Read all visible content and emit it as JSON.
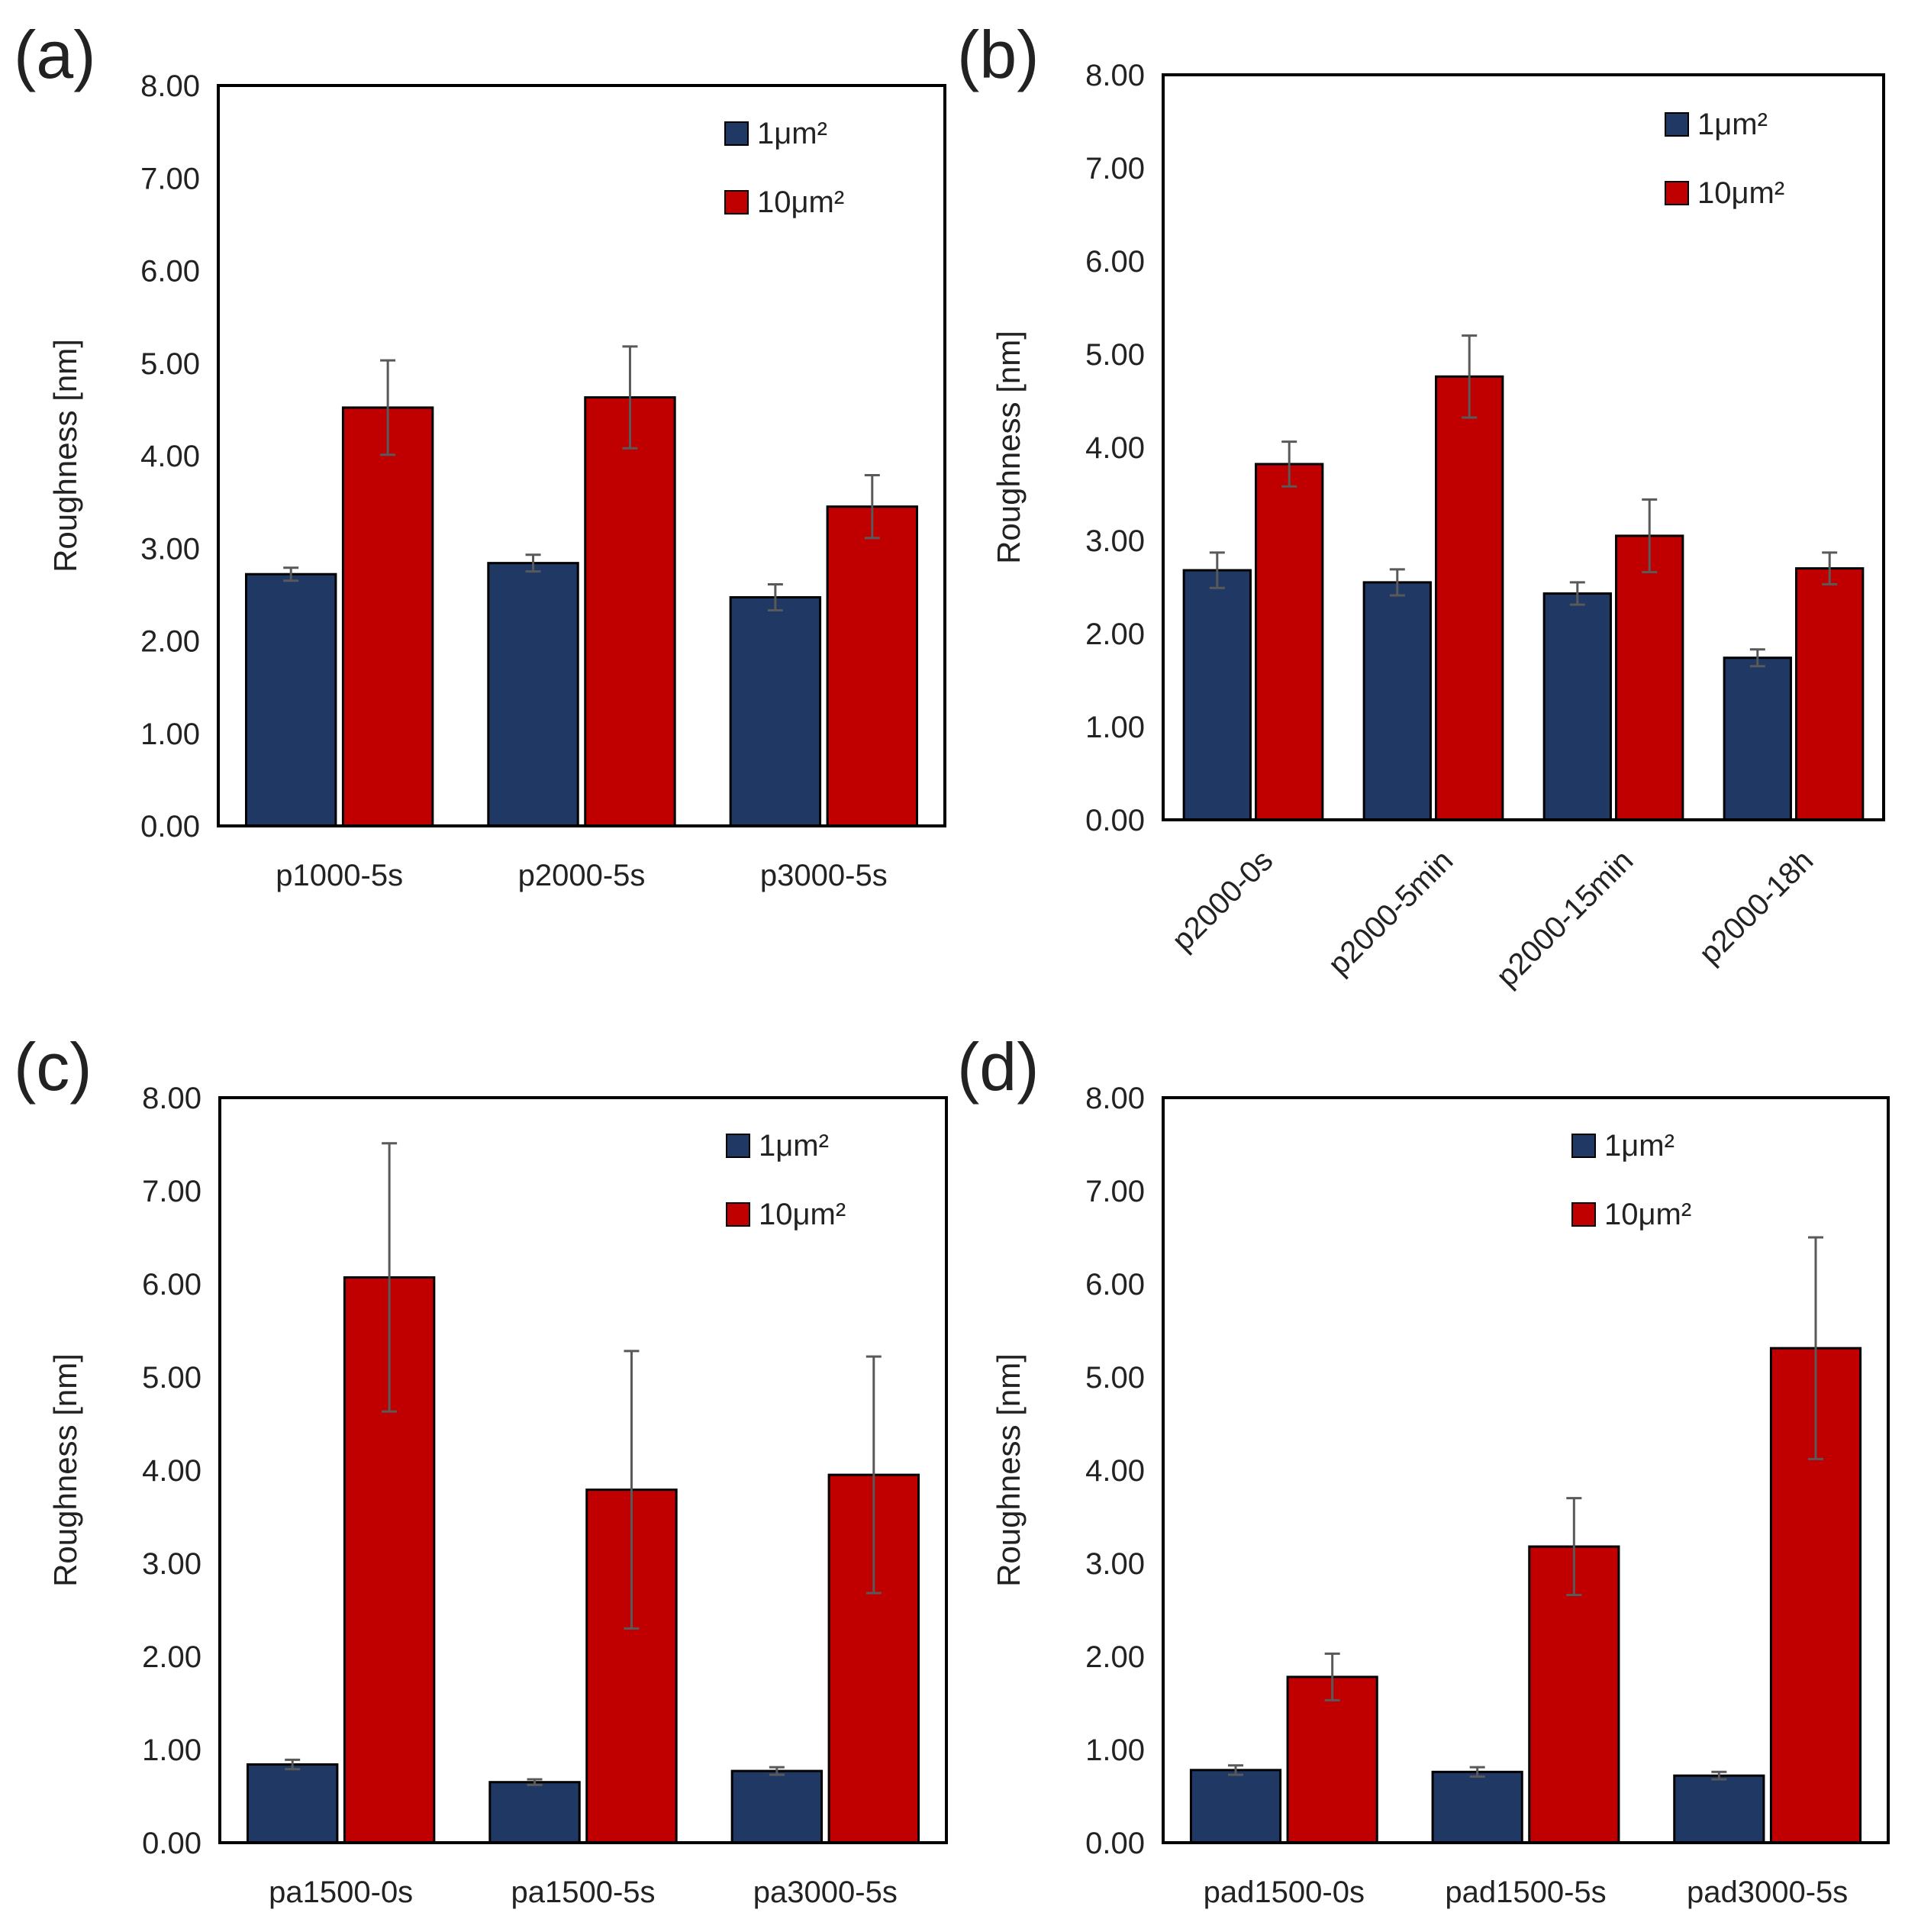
{
  "colors": {
    "series_1um": "#1f3864",
    "series_10um": "#c00000",
    "error_bar": "#595959",
    "frame": "#000000"
  },
  "chart_data": [
    {
      "panel": "(a)",
      "type": "bar",
      "ylabel": "Roughness [nm]",
      "ylim": [
        0,
        8
      ],
      "yticks": [
        "0.00",
        "1.00",
        "2.00",
        "3.00",
        "4.00",
        "5.00",
        "6.00",
        "7.00",
        "8.00"
      ],
      "categories": [
        "p1000-5s",
        "p2000-5s",
        "p3000-5s"
      ],
      "rotated_labels": false,
      "legend": "top-right",
      "series": [
        {
          "name": "1μm²",
          "values": [
            2.72,
            2.84,
            2.47
          ],
          "errors": [
            0.07,
            0.09,
            0.14
          ]
        },
        {
          "name": "10μm²",
          "values": [
            4.52,
            4.63,
            3.45
          ],
          "errors": [
            0.51,
            0.55,
            0.34
          ]
        }
      ]
    },
    {
      "panel": "(b)",
      "type": "bar",
      "ylabel": "Roughness [nm]",
      "ylim": [
        0,
        8
      ],
      "yticks": [
        "0.00",
        "1.00",
        "2.00",
        "3.00",
        "4.00",
        "5.00",
        "6.00",
        "7.00",
        "8.00"
      ],
      "categories": [
        "p2000-0s",
        "p2000-5min",
        "p2000-15min",
        "p2000-18h"
      ],
      "rotated_labels": true,
      "legend": "top-right",
      "series": [
        {
          "name": "1μm²",
          "values": [
            2.68,
            2.55,
            2.43,
            1.74
          ],
          "errors": [
            0.19,
            0.14,
            0.12,
            0.09
          ]
        },
        {
          "name": "10μm²",
          "values": [
            3.82,
            4.76,
            3.05,
            2.7
          ],
          "errors": [
            0.24,
            0.44,
            0.39,
            0.17
          ]
        }
      ]
    },
    {
      "panel": "(c)",
      "type": "bar",
      "ylabel": "Roughness [nm]",
      "ylim": [
        0,
        8
      ],
      "yticks": [
        "0.00",
        "1.00",
        "2.00",
        "3.00",
        "4.00",
        "5.00",
        "6.00",
        "7.00",
        "8.00"
      ],
      "categories": [
        "pa1500-0s",
        "pa1500-5s",
        "pa3000-5s"
      ],
      "rotated_labels": false,
      "legend": "top-right",
      "series": [
        {
          "name": "1μm²",
          "values": [
            0.84,
            0.65,
            0.77
          ],
          "errors": [
            0.05,
            0.03,
            0.04
          ]
        },
        {
          "name": "10μm²",
          "values": [
            6.07,
            3.79,
            3.95
          ],
          "errors": [
            1.44,
            1.49,
            1.27
          ]
        }
      ]
    },
    {
      "panel": "(d)",
      "type": "bar",
      "ylabel": "Roughness [nm]",
      "ylim": [
        0,
        8
      ],
      "yticks": [
        "0.00",
        "1.00",
        "2.00",
        "3.00",
        "4.00",
        "5.00",
        "6.00",
        "7.00",
        "8.00"
      ],
      "categories": [
        "pad1500-0s",
        "pad1500-5s",
        "pad3000-5s"
      ],
      "rotated_labels": false,
      "legend": "top-right",
      "series": [
        {
          "name": "1μm²",
          "values": [
            0.78,
            0.76,
            0.72
          ],
          "errors": [
            0.05,
            0.05,
            0.04
          ]
        },
        {
          "name": "10μm²",
          "values": [
            1.78,
            3.18,
            5.31
          ],
          "errors": [
            0.25,
            0.52,
            1.19
          ]
        }
      ]
    }
  ]
}
